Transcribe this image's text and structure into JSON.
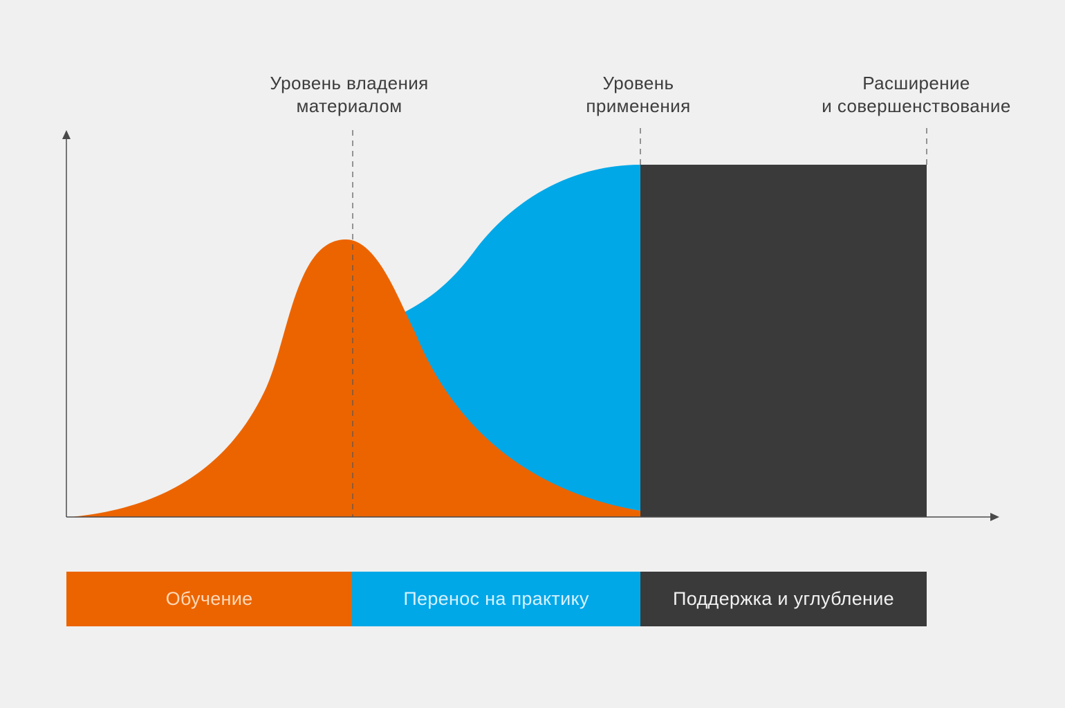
{
  "milestones": [
    {
      "line1": "Уровень владения",
      "line2": "материалом"
    },
    {
      "line1": "Уровень",
      "line2": "применения"
    },
    {
      "line1": "Расширение",
      "line2": "и совершенствование"
    }
  ],
  "phases": [
    {
      "label": "Обучение",
      "color": "#ec6400",
      "text_color": "#ffd9b8"
    },
    {
      "label": "Перенос на практику",
      "color": "#00a8e8",
      "text_color": "#d6f2ff"
    },
    {
      "label": "Поддержка и углубление",
      "color": "#3a3a3a",
      "text_color": "#f2f2f2"
    }
  ],
  "colors": {
    "background": "#f0f0f0",
    "axis": "#4a4a4a",
    "guide": "#555555",
    "learning": "#ec6400",
    "transfer": "#00a8e8",
    "support": "#3a3a3a"
  }
}
